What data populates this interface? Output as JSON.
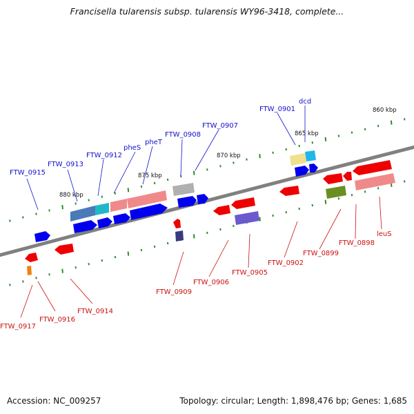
{
  "title": "Francisella tularensis subsp. tularensis WY96-3418, complete...",
  "footer": {
    "accession": "Accession: NC_009257",
    "topology": "Topology: circular; Length: 1,898,476 bp; Genes: 1,685"
  },
  "position_labels": [
    "880 kbp",
    "875 kbp",
    "870 kbp",
    "865 kbp",
    "860 kbp"
  ],
  "colors": {
    "backbone": "#808080",
    "tick": "#2e8b2e",
    "outer_label": "#1010cc",
    "inner_label": "#cc1010",
    "gene_blue": "#0000ee",
    "gene_red": "#ee0000"
  },
  "genes_outer": [
    {
      "name": "FTW_0915",
      "color": "#0000ee"
    },
    {
      "name": "FTW_0913",
      "color": "#4a7ab8"
    },
    {
      "name": "FTW_0912",
      "color": "#20b8c8"
    },
    {
      "name": "pheS",
      "color": "#f08a8a"
    },
    {
      "name": "pheT",
      "color": "#f08a8a"
    },
    {
      "name": "FTW_0908",
      "color": "#b0b0b0"
    },
    {
      "name": "FTW_0907",
      "color": "#0000ee"
    },
    {
      "name": "FTW_0901",
      "color": "#f0e090"
    },
    {
      "name": "dcd",
      "color": "#20b8e8"
    }
  ],
  "genes_inner": [
    {
      "name": "FTW_0917",
      "color": "#f08010"
    },
    {
      "name": "FTW_0916",
      "color": "#ee0000"
    },
    {
      "name": "FTW_0914",
      "color": "#ee0000"
    },
    {
      "name": "FTW_0909",
      "color": "#3a3a80"
    },
    {
      "name": "FTW_0906",
      "color": "#ee0000"
    },
    {
      "name": "FTW_0905",
      "color": "#6a5acd"
    },
    {
      "name": "FTW_0902",
      "color": "#ee0000"
    },
    {
      "name": "FTW_0899",
      "color": "#6b8e23"
    },
    {
      "name": "FTW_0898",
      "color": "#ee0000"
    },
    {
      "name": "leuS",
      "color": "#ee0000"
    }
  ]
}
